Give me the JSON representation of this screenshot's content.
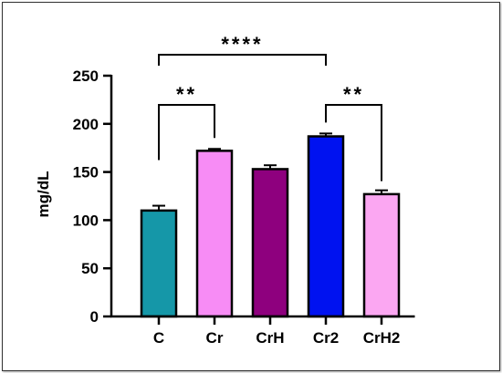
{
  "chart_data": {
    "type": "bar",
    "title": "",
    "xlabel": "",
    "ylabel": "mg/dL",
    "ylim": [
      0,
      250
    ],
    "yticks": [
      0,
      50,
      100,
      150,
      200,
      250
    ],
    "grid": false,
    "categories": [
      "C",
      "Cr",
      "CrH",
      "Cr2",
      "CrH2"
    ],
    "values": [
      110,
      172,
      153,
      187,
      127
    ],
    "errors": [
      5,
      2,
      4,
      3,
      4
    ],
    "colors": [
      "#1597A8",
      "#F78CF5",
      "#8E007E",
      "#0012F0",
      "#FBA7F2"
    ],
    "significance": [
      {
        "from": 0,
        "to": 3,
        "label": "****"
      },
      {
        "from": 0,
        "to": 1,
        "label": "**"
      },
      {
        "from": 3,
        "to": 4,
        "label": "**"
      }
    ]
  }
}
